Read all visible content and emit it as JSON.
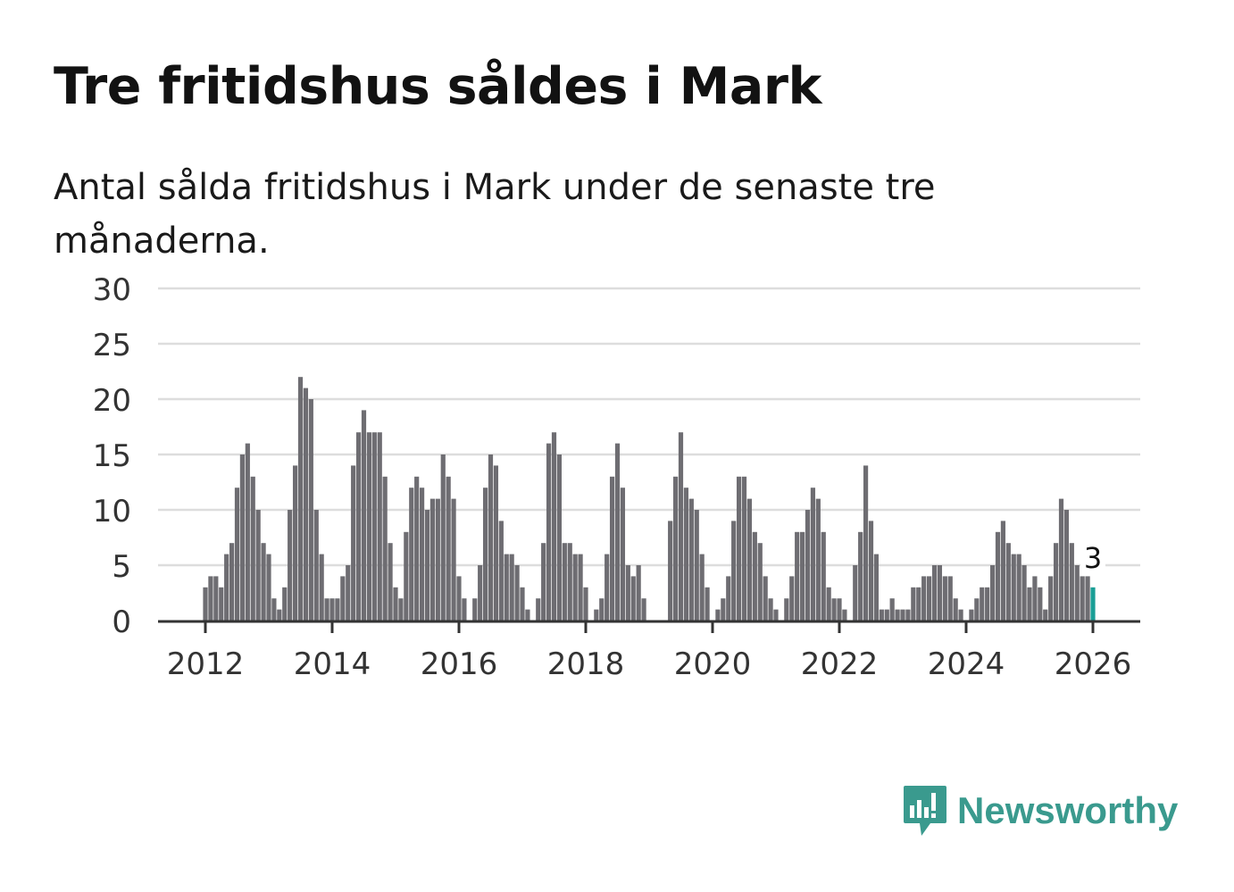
{
  "title": "Tre fritidshus såldes i Mark",
  "subtitle": "Antal sålda fritidshus i Mark under de senaste tre månaderna.",
  "brand": "Newsworthy",
  "colors": {
    "bar": "#6e6d72",
    "highlight": "#1a9e96",
    "grid": "#dddddd",
    "axis": "#333333",
    "brand": "#3a9a8e"
  },
  "chart_data": {
    "type": "bar",
    "title": "Tre fritidshus såldes i Mark",
    "xlabel": "",
    "ylabel": "",
    "ylim": [
      0,
      30
    ],
    "yticks": [
      "0",
      "5",
      "10",
      "15",
      "20",
      "25",
      "30"
    ],
    "xticks": [
      "2012",
      "2014",
      "2016",
      "2018",
      "2020",
      "2022",
      "2024",
      "2026"
    ],
    "grid": true,
    "start": "2012-01",
    "frequency": "monthly",
    "values": [
      3,
      4,
      4,
      3,
      6,
      7,
      12,
      15,
      16,
      13,
      10,
      7,
      6,
      2,
      1,
      3,
      10,
      14,
      22,
      21,
      20,
      10,
      6,
      2,
      2,
      2,
      4,
      5,
      14,
      17,
      19,
      17,
      17,
      17,
      13,
      7,
      3,
      2,
      8,
      12,
      13,
      12,
      10,
      11,
      11,
      15,
      13,
      11,
      4,
      2,
      0,
      2,
      5,
      12,
      15,
      14,
      9,
      6,
      6,
      5,
      3,
      1,
      0,
      2,
      7,
      16,
      17,
      15,
      7,
      7,
      6,
      6,
      3,
      0,
      1,
      2,
      6,
      13,
      16,
      12,
      5,
      4,
      5,
      2,
      0,
      0,
      0,
      0,
      9,
      13,
      17,
      12,
      11,
      10,
      6,
      3,
      0,
      1,
      2,
      4,
      9,
      13,
      13,
      11,
      8,
      7,
      4,
      2,
      1,
      0,
      2,
      4,
      8,
      8,
      10,
      12,
      11,
      8,
      3,
      2,
      2,
      1,
      0,
      5,
      8,
      14,
      9,
      6,
      1,
      1,
      2,
      1,
      1,
      1,
      3,
      3,
      4,
      4,
      5,
      5,
      4,
      4,
      2,
      1,
      0,
      1,
      2,
      3,
      3,
      5,
      8,
      9,
      7,
      6,
      6,
      5,
      3,
      4,
      3,
      1,
      4,
      7,
      11,
      10,
      7,
      5,
      4,
      4,
      3
    ],
    "annotation": {
      "label": "3",
      "target": "last"
    }
  }
}
